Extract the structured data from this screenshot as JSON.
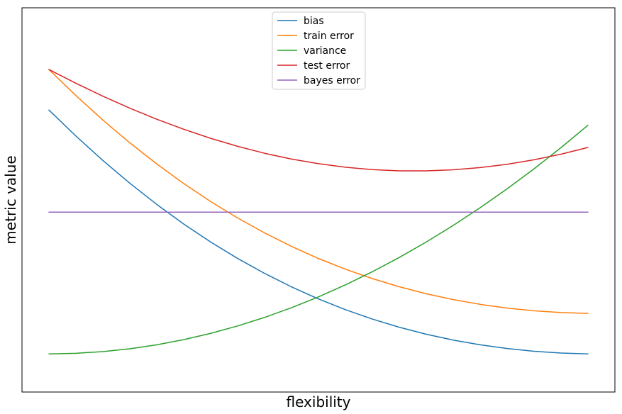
{
  "chart_data": {
    "type": "line",
    "title": "",
    "xlabel": "flexibility",
    "ylabel": "metric value",
    "xticks": [],
    "yticks": [],
    "grid": false,
    "legend_position": "top-center",
    "xlim": [
      -0.05,
      1.05
    ],
    "ylim": [
      -0.04,
      0.9
    ],
    "x": [
      0.0,
      0.05,
      0.1,
      0.15,
      0.2,
      0.25,
      0.3,
      0.35,
      0.4,
      0.45,
      0.5,
      0.55,
      0.6,
      0.65,
      0.7,
      0.75,
      0.8,
      0.85,
      0.9,
      0.95,
      1.0
    ],
    "series": [
      {
        "name": "bias",
        "color": "#1f77b4",
        "values": [
          0.65,
          0.5863,
          0.5265,
          0.4708,
          0.419,
          0.3711,
          0.3271,
          0.2868,
          0.2503,
          0.2173,
          0.1877,
          0.1615,
          0.1385,
          0.1185,
          0.1014,
          0.0871,
          0.0755,
          0.0664,
          0.0597,
          0.0554,
          0.0533
        ]
      },
      {
        "name": "train error",
        "color": "#ff7f0e",
        "values": [
          0.749,
          0.6853,
          0.6255,
          0.5698,
          0.518,
          0.4701,
          0.4261,
          0.3858,
          0.3493,
          0.3163,
          0.2867,
          0.2605,
          0.2375,
          0.2175,
          0.2004,
          0.1861,
          0.1745,
          0.1654,
          0.1587,
          0.1544,
          0.1523
        ]
      },
      {
        "name": "variance",
        "color": "#2ca02c",
        "values": [
          0.0533,
          0.0547,
          0.0589,
          0.0658,
          0.0756,
          0.0881,
          0.1035,
          0.1216,
          0.1425,
          0.1663,
          0.1928,
          0.2221,
          0.2543,
          0.2892,
          0.327,
          0.3676,
          0.4109,
          0.4571,
          0.5061,
          0.5579,
          0.6126
        ]
      },
      {
        "name": "test error",
        "color": "#d62728",
        "values": [
          0.749,
          0.7154,
          0.6838,
          0.6544,
          0.6274,
          0.6029,
          0.5807,
          0.5612,
          0.5441,
          0.5299,
          0.5186,
          0.5099,
          0.5042,
          0.5012,
          0.5011,
          0.5037,
          0.5091,
          0.5172,
          0.5282,
          0.5419,
          0.5584
        ]
      },
      {
        "name": "bayes error",
        "color": "#9467bd",
        "values": [
          0.4,
          0.4,
          0.4,
          0.4,
          0.4,
          0.4,
          0.4,
          0.4,
          0.4,
          0.4,
          0.4,
          0.4,
          0.4,
          0.4,
          0.4,
          0.4,
          0.4,
          0.4,
          0.4,
          0.4,
          0.4
        ]
      }
    ]
  }
}
